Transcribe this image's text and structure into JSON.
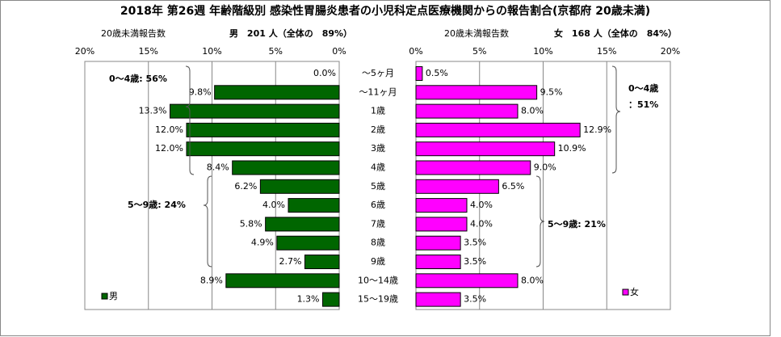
{
  "title": "2018年 第26週 年齢階級別 感染性胃腸炎患者の小児科定点医療機関からの報告割合(京都府 20歳未満)",
  "chart_data": [
    {
      "type": "bar",
      "orientation": "horizontal",
      "xreverse": true,
      "count_label": "20歳未満報告数",
      "subtitle": "男　201 人（全体の　89%）",
      "categories": [
        "～5ヶ月",
        "～11ヶ月",
        "1歳",
        "2歳",
        "3歳",
        "4歳",
        "5歳",
        "6歳",
        "7歳",
        "8歳",
        "9歳",
        "10～14歳",
        "15～19歳"
      ],
      "series": [
        {
          "name": "男",
          "color": "#006600",
          "values": [
            0.0,
            9.8,
            13.3,
            12.0,
            12.0,
            8.4,
            6.2,
            4.0,
            5.8,
            4.9,
            2.7,
            8.9,
            1.3
          ],
          "value_labels": [
            "0.0%",
            "9.8%",
            "13.3%",
            "12.0%",
            "12.0%",
            "8.4%",
            "6.2%",
            "4.0%",
            "5.8%",
            "4.9%",
            "2.7%",
            "8.9%",
            "1.3%"
          ]
        }
      ],
      "xlim": [
        0,
        20
      ],
      "xticks": [
        {
          "value": 20,
          "label": "20%"
        },
        {
          "value": 15,
          "label": "15%"
        },
        {
          "value": 10,
          "label": "10%"
        },
        {
          "value": 5,
          "label": "5%"
        },
        {
          "value": 0,
          "label": "0%"
        }
      ],
      "grid": true,
      "annotations": [
        "0～4歳: 56%",
        "5～9歳: 24%"
      ]
    },
    {
      "type": "bar",
      "orientation": "horizontal",
      "xreverse": false,
      "count_label": "20歳未満報告数",
      "subtitle": "女　168 人（全体の　84%）",
      "series": [
        {
          "name": "女",
          "color": "#ff00ff",
          "values": [
            0.5,
            9.5,
            8.0,
            12.9,
            10.9,
            9.0,
            6.5,
            4.0,
            4.0,
            3.5,
            3.5,
            8.0,
            3.5
          ],
          "value_labels": [
            "0.5%",
            "9.5%",
            "8.0%",
            "12.9%",
            "10.9%",
            "9.0%",
            "6.5%",
            "4.0%",
            "4.0%",
            "3.5%",
            "3.5%",
            "8.0%",
            "3.5%"
          ]
        }
      ],
      "xlim": [
        0,
        20
      ],
      "xticks": [
        {
          "value": 0,
          "label": "0%"
        },
        {
          "value": 5,
          "label": "5%"
        },
        {
          "value": 10,
          "label": "10%"
        },
        {
          "value": 15,
          "label": "15%"
        },
        {
          "value": 20,
          "label": "20%"
        }
      ],
      "grid": true,
      "annotations": [
        "0～4歳",
        "：51%",
        "5～9歳: 21%"
      ]
    }
  ]
}
